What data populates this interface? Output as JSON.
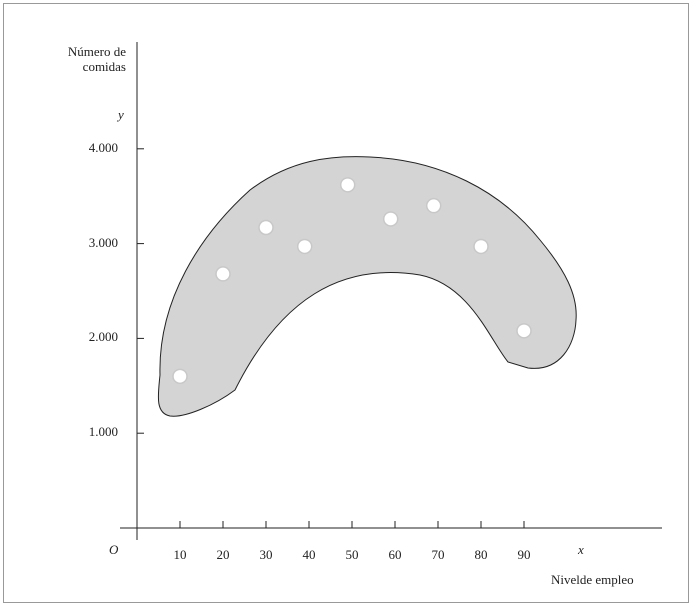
{
  "chart_data": {
    "type": "scatter",
    "y_axis_title": [
      "Número de",
      "comidas"
    ],
    "y_symbol": "y",
    "x_symbol": "x",
    "origin_label": "O",
    "xlabel": "Nivelde empleo",
    "x_ticks": [
      10,
      20,
      30,
      40,
      50,
      60,
      70,
      80,
      90
    ],
    "x_tick_labels": [
      "10",
      "20",
      "30",
      "40",
      "50",
      "60",
      "70",
      "80",
      "90"
    ],
    "y_ticks": [
      1000,
      2000,
      3000,
      4000
    ],
    "y_tick_labels": [
      "1.000",
      "2.000",
      "3.000",
      "4.000"
    ],
    "xlim": [
      0,
      110
    ],
    "ylim": [
      0,
      4600
    ],
    "grid": false,
    "shaded_region_color": "#d4d4d4",
    "point_color": "#ffffff",
    "points": [
      {
        "x": 10,
        "y": 1600
      },
      {
        "x": 20,
        "y": 2680
      },
      {
        "x": 30,
        "y": 3170
      },
      {
        "x": 39,
        "y": 2970
      },
      {
        "x": 49,
        "y": 3620
      },
      {
        "x": 59,
        "y": 3260
      },
      {
        "x": 69,
        "y": 3400
      },
      {
        "x": 80,
        "y": 2970
      },
      {
        "x": 90,
        "y": 2080
      }
    ]
  }
}
